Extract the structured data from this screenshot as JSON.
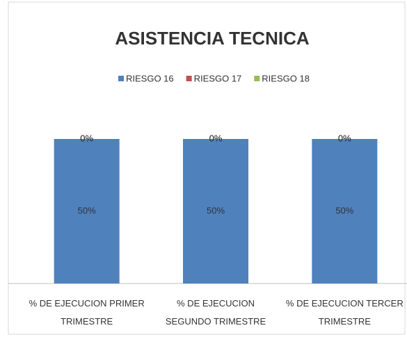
{
  "chart_data": {
    "type": "bar",
    "stacked": true,
    "title": "ASISTENCIA TECNICA",
    "categories": [
      "% DE EJECUCION PRIMER TRIMESTRE",
      "% DE EJECUCION SEGUNDO TRIMESTRE",
      "% DE EJECUCION TERCER TRIMESTRE"
    ],
    "series": [
      {
        "name": "RIESGO 16",
        "color": "#4f81bd",
        "values": [
          50,
          50,
          50
        ],
        "value_labels": [
          "50%",
          "50%",
          "50%"
        ]
      },
      {
        "name": "RIESGO 17",
        "color": "#c0504d",
        "values": [
          0,
          0,
          0
        ],
        "value_labels": [
          "0%",
          "0%",
          "0%"
        ]
      },
      {
        "name": "RIESGO 18",
        "color": "#9bbb59",
        "values": [
          0,
          0,
          0
        ],
        "value_labels": [
          "0%",
          "0%",
          "0%"
        ]
      }
    ],
    "legend": "top"
  }
}
